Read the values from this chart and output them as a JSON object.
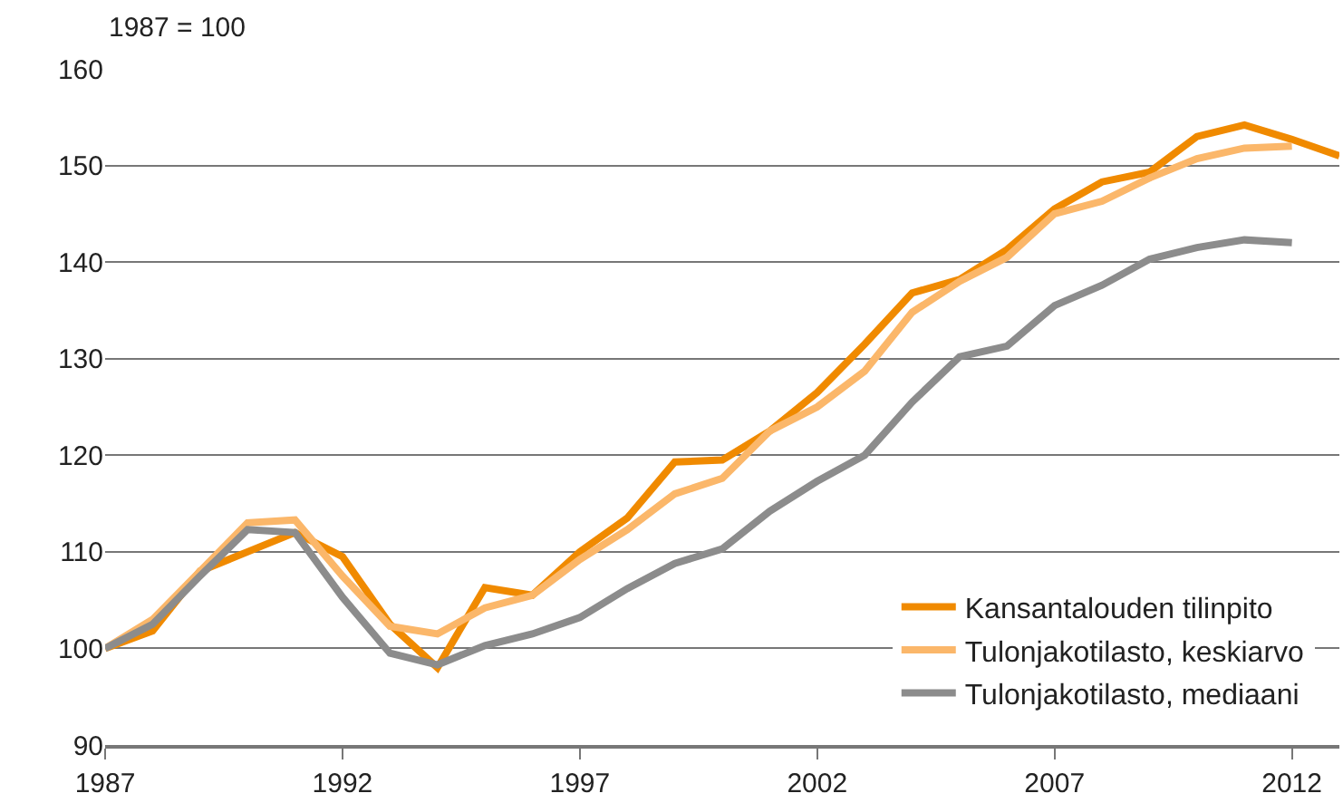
{
  "chart_data": {
    "type": "line",
    "x": [
      1987,
      1988,
      1989,
      1990,
      1991,
      1992,
      1993,
      1994,
      1995,
      1996,
      1997,
      1998,
      1999,
      2000,
      2001,
      2002,
      2003,
      2004,
      2005,
      2006,
      2007,
      2008,
      2009,
      2010,
      2011,
      2012,
      2013
    ],
    "series": [
      {
        "name": "Kansantalouden tilinpito",
        "color": "#f08a00",
        "values": [
          100,
          101.8,
          108,
          110,
          112,
          109.5,
          102.5,
          98,
          106.3,
          105.5,
          110,
          113.5,
          119.3,
          119.5,
          122.5,
          126.5,
          131.5,
          136.8,
          138.2,
          141.3,
          145.5,
          148.3,
          149.3,
          153,
          154.2,
          152.7,
          151
        ]
      },
      {
        "name": "Tulonjakotilasto, keskiarvo",
        "color": "#fbb76a",
        "values": [
          100,
          103,
          108,
          113,
          113.3,
          107.5,
          102.3,
          101.5,
          104.2,
          105.5,
          109.2,
          112.3,
          116,
          117.6,
          122.5,
          125,
          128.7,
          134.8,
          138,
          140.5,
          145,
          146.3,
          148.7,
          150.7,
          151.8,
          152,
          null
        ]
      },
      {
        "name": "Tulonjakotilasto, mediaani",
        "color": "#8c8c8c",
        "values": [
          100,
          102.5,
          107.5,
          112.3,
          112,
          105.3,
          99.5,
          98.3,
          100.3,
          101.5,
          103.2,
          106.2,
          108.8,
          110.3,
          114.2,
          117.3,
          120,
          125.5,
          130.2,
          131.3,
          135.5,
          137.6,
          140.3,
          141.5,
          142.3,
          142,
          null
        ]
      }
    ],
    "annotations": [
      "1987 = 100"
    ],
    "xlim": [
      1987,
      2013
    ],
    "xticks": [
      1987,
      1992,
      1997,
      2002,
      2007,
      2012
    ],
    "ylim": [
      90,
      160
    ],
    "yticks": [
      90,
      100,
      110,
      120,
      130,
      140,
      150,
      160
    ],
    "grid": "y",
    "legend": "bottom right",
    "marker": "none",
    "line_style": "solid"
  }
}
